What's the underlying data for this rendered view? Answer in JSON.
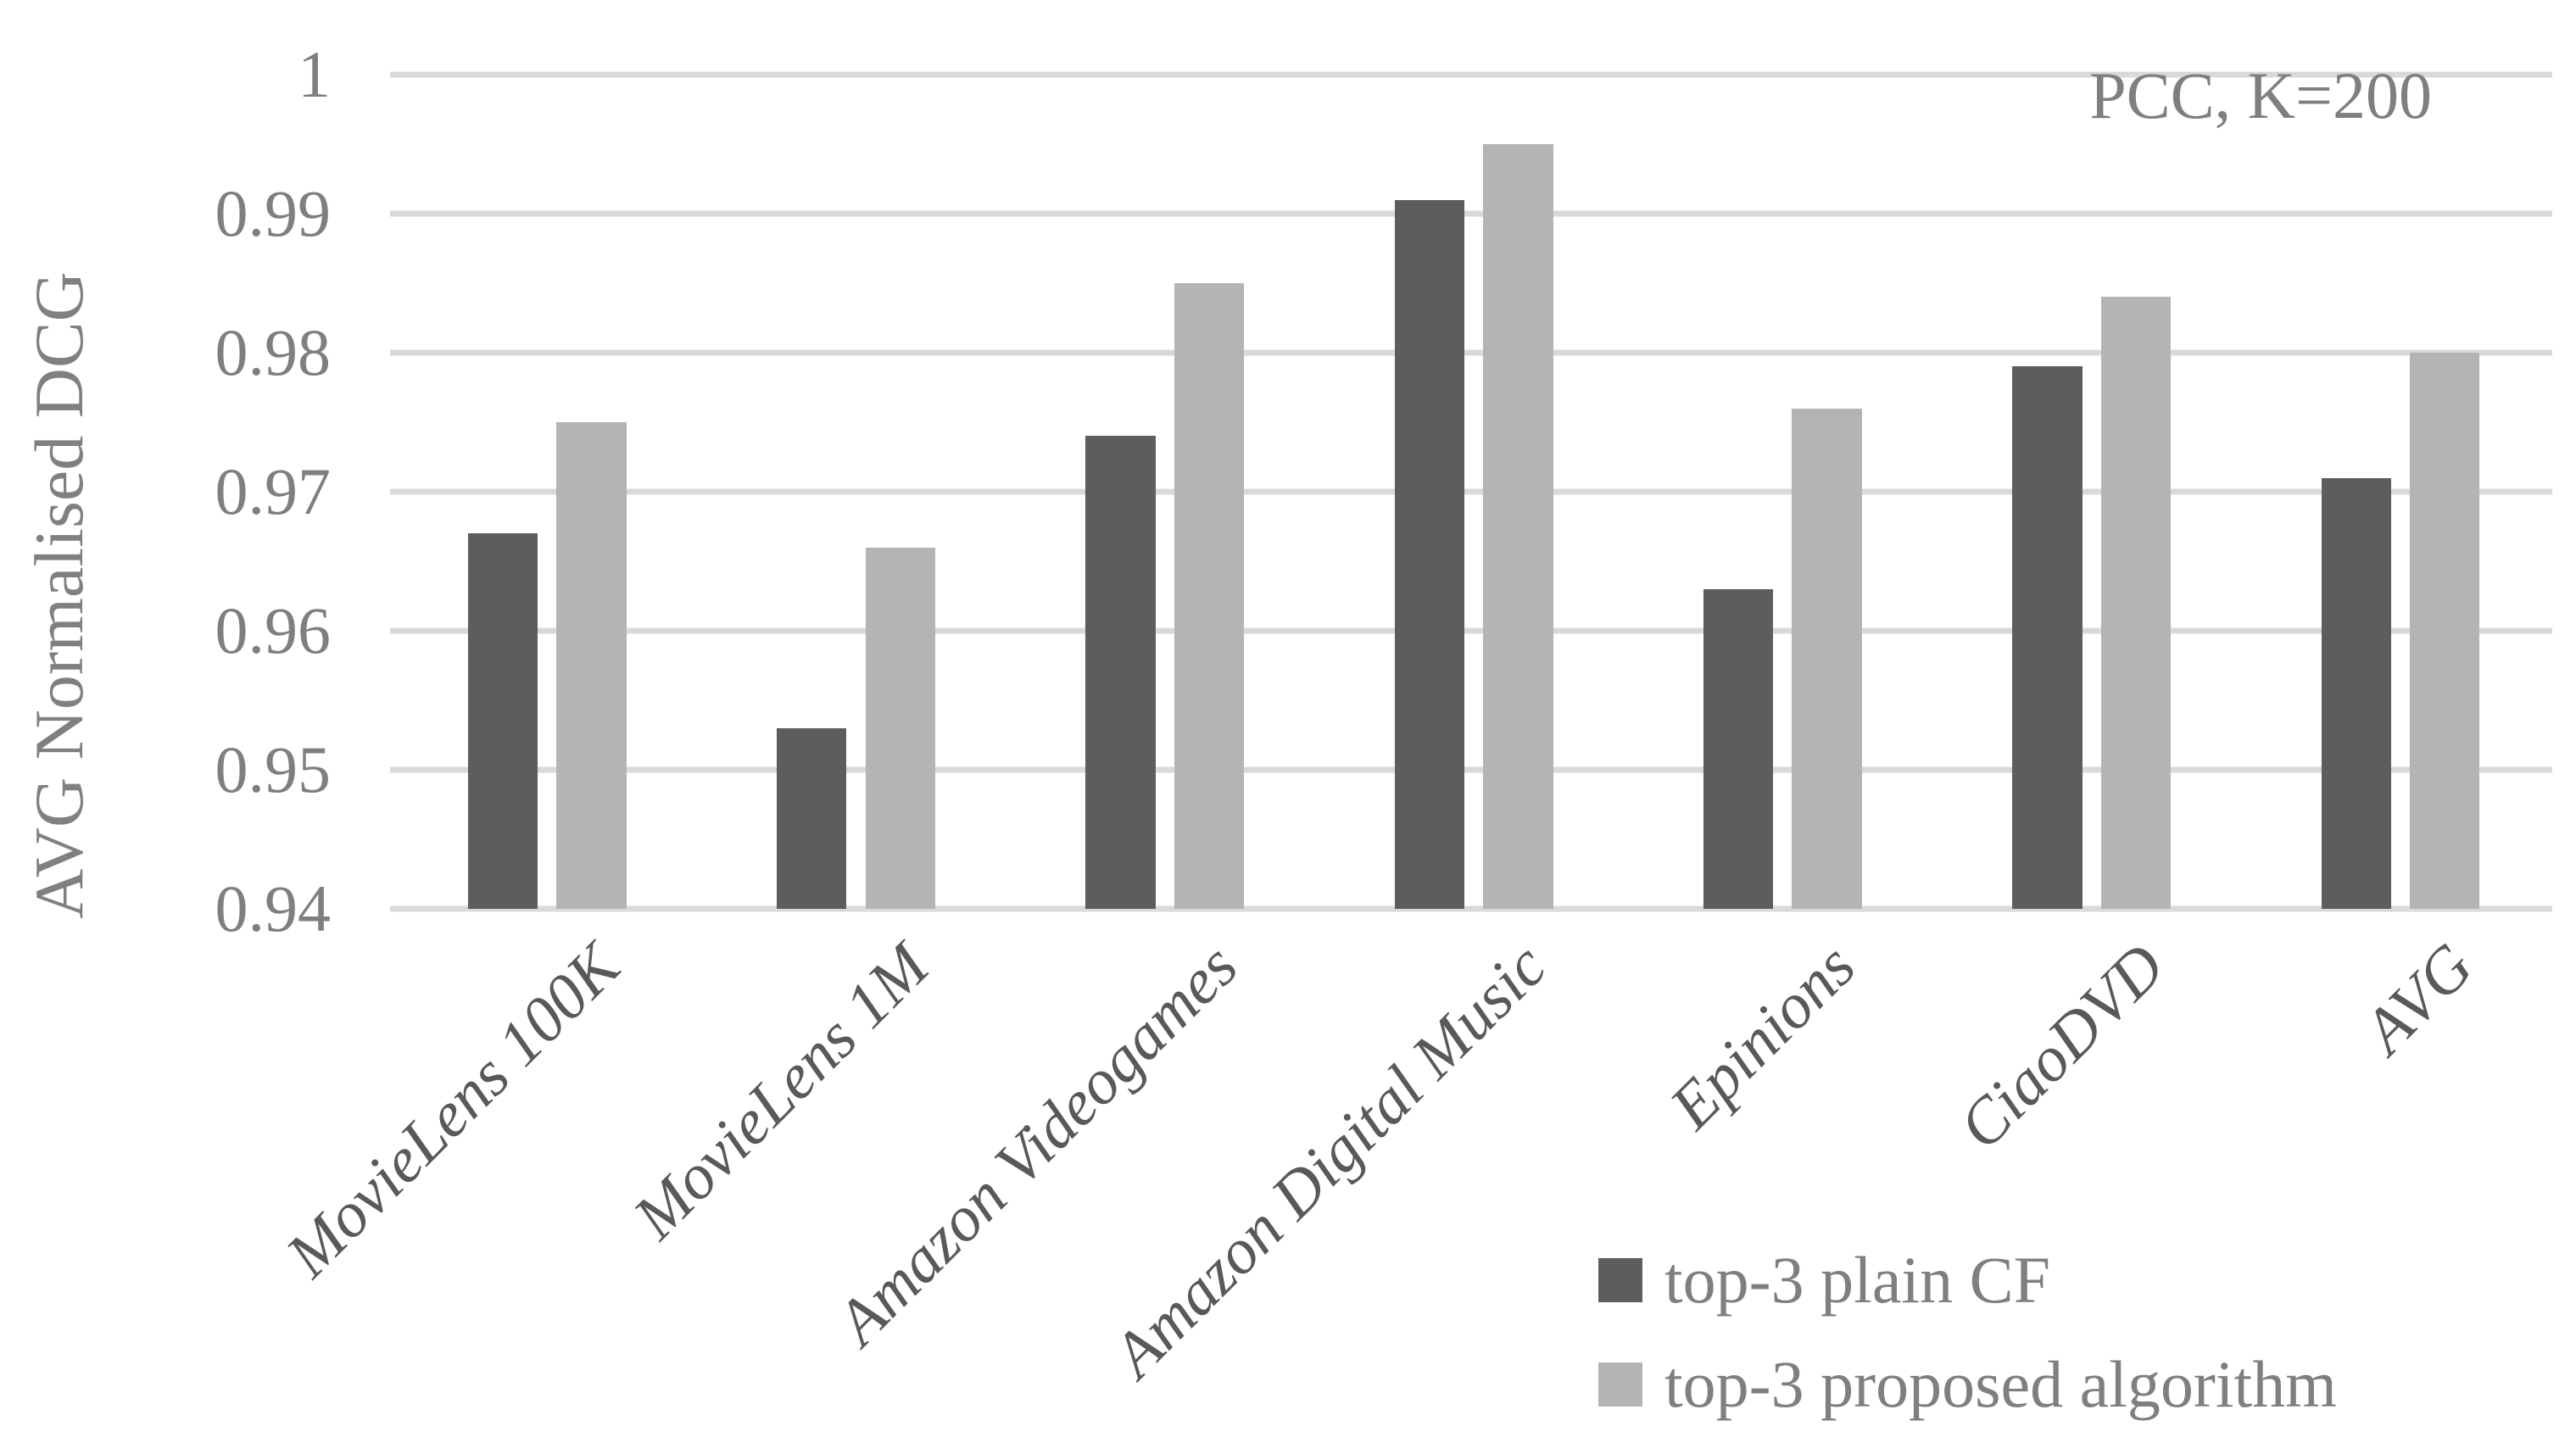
{
  "chart_data": {
    "type": "bar",
    "title": "",
    "annotation": "PCC, K=200",
    "ylabel": "AVG Normalised DCG",
    "xlabel": "",
    "categories": [
      "MovieLens 100K",
      "MovieLens 1M",
      "Amazon Videogames",
      "Amazon Digital Music",
      "Epinions",
      "CiaoDVD",
      "AVG"
    ],
    "series": [
      {
        "name": "top-3 plain CF",
        "color": "#5d5d5d",
        "values": [
          0.967,
          0.953,
          0.974,
          0.991,
          0.963,
          0.979,
          0.971
        ]
      },
      {
        "name": "top-3 proposed algorithm",
        "color": "#b4b4b4",
        "values": [
          0.975,
          0.966,
          0.985,
          0.995,
          0.976,
          0.984,
          0.98
        ]
      }
    ],
    "ylim": [
      0.94,
      1.0
    ],
    "y_tick_labels": [
      "1",
      "0.99",
      "0.98",
      "0.97",
      "0.96",
      "0.95",
      "0.94"
    ],
    "y_tick_values": [
      1.0,
      0.99,
      0.98,
      0.97,
      0.96,
      0.95,
      0.94
    ],
    "grid": true,
    "legend_position": "bottom-right"
  },
  "colors": {
    "background": "#ffffff",
    "gridline": "#d9d9d9",
    "tick_text": "#7f7f7f",
    "axis_title_text": "#808080",
    "annotation_text": "#7f7f7f",
    "category_text": "#595959",
    "legend_text": "#7f7f7f"
  }
}
